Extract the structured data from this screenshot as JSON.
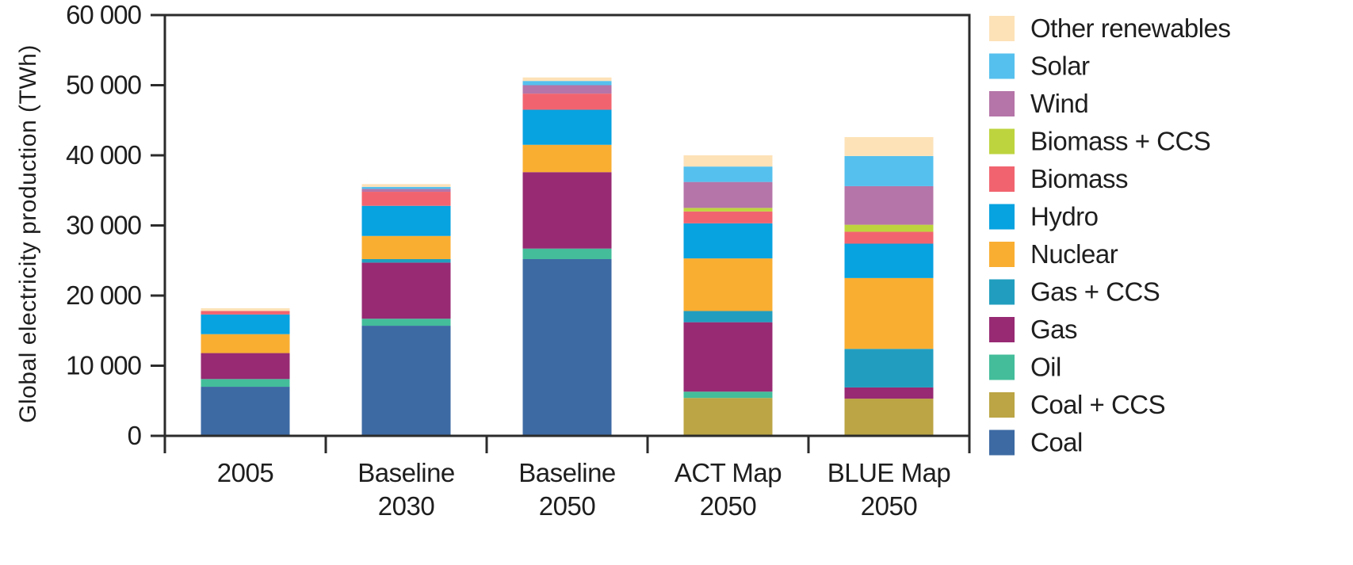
{
  "chart_data": {
    "type": "bar",
    "stacked": true,
    "ylabel": "Global electricity production (TWh)",
    "ylim": [
      0,
      60000
    ],
    "yticks": [
      0,
      10000,
      20000,
      30000,
      40000,
      50000,
      60000
    ],
    "ytick_labels": [
      "0",
      "10 000",
      "20 000",
      "30 000",
      "40 000",
      "50 000",
      "60 000"
    ],
    "categories": [
      {
        "line1": "2005",
        "line2": ""
      },
      {
        "line1": "Baseline",
        "line2": "2030"
      },
      {
        "line1": "Baseline",
        "line2": "2050"
      },
      {
        "line1": "ACT Map",
        "line2": "2050"
      },
      {
        "line1": "BLUE Map",
        "line2": "2050"
      }
    ],
    "legend_position": "right",
    "series": [
      {
        "name": "Coal",
        "color": "#3d6aa3",
        "values": [
          7000,
          15700,
          25200,
          0,
          0
        ]
      },
      {
        "name": "Coal + CCS",
        "color": "#bba544",
        "values": [
          0,
          0,
          0,
          5400,
          5300
        ]
      },
      {
        "name": "Oil",
        "color": "#43bd9a",
        "values": [
          1100,
          1000,
          1500,
          900,
          0
        ]
      },
      {
        "name": "Gas",
        "color": "#972a73",
        "values": [
          3700,
          8000,
          10900,
          9900,
          1600
        ]
      },
      {
        "name": "Gas + CCS",
        "color": "#219ebf",
        "values": [
          0,
          500,
          0,
          1600,
          5500
        ]
      },
      {
        "name": "Nuclear",
        "color": "#f9ae32",
        "values": [
          2700,
          3300,
          3900,
          7500,
          10100
        ]
      },
      {
        "name": "Hydro",
        "color": "#07a2e0",
        "values": [
          2800,
          4300,
          5000,
          5000,
          4900
        ]
      },
      {
        "name": "Biomass",
        "color": "#f1646f",
        "values": [
          500,
          2000,
          2300,
          1700,
          1700
        ]
      },
      {
        "name": "Biomass + CCS",
        "color": "#bed43e",
        "values": [
          0,
          0,
          0,
          500,
          1000
        ]
      },
      {
        "name": "Wind",
        "color": "#b575a8",
        "values": [
          0,
          400,
          1200,
          3700,
          5500
        ]
      },
      {
        "name": "Solar",
        "color": "#55c0ee",
        "values": [
          0,
          300,
          600,
          2200,
          4300
        ]
      },
      {
        "name": "Other renewables",
        "color": "#fde2b8",
        "values": [
          400,
          400,
          500,
          1600,
          2700
        ]
      }
    ]
  }
}
